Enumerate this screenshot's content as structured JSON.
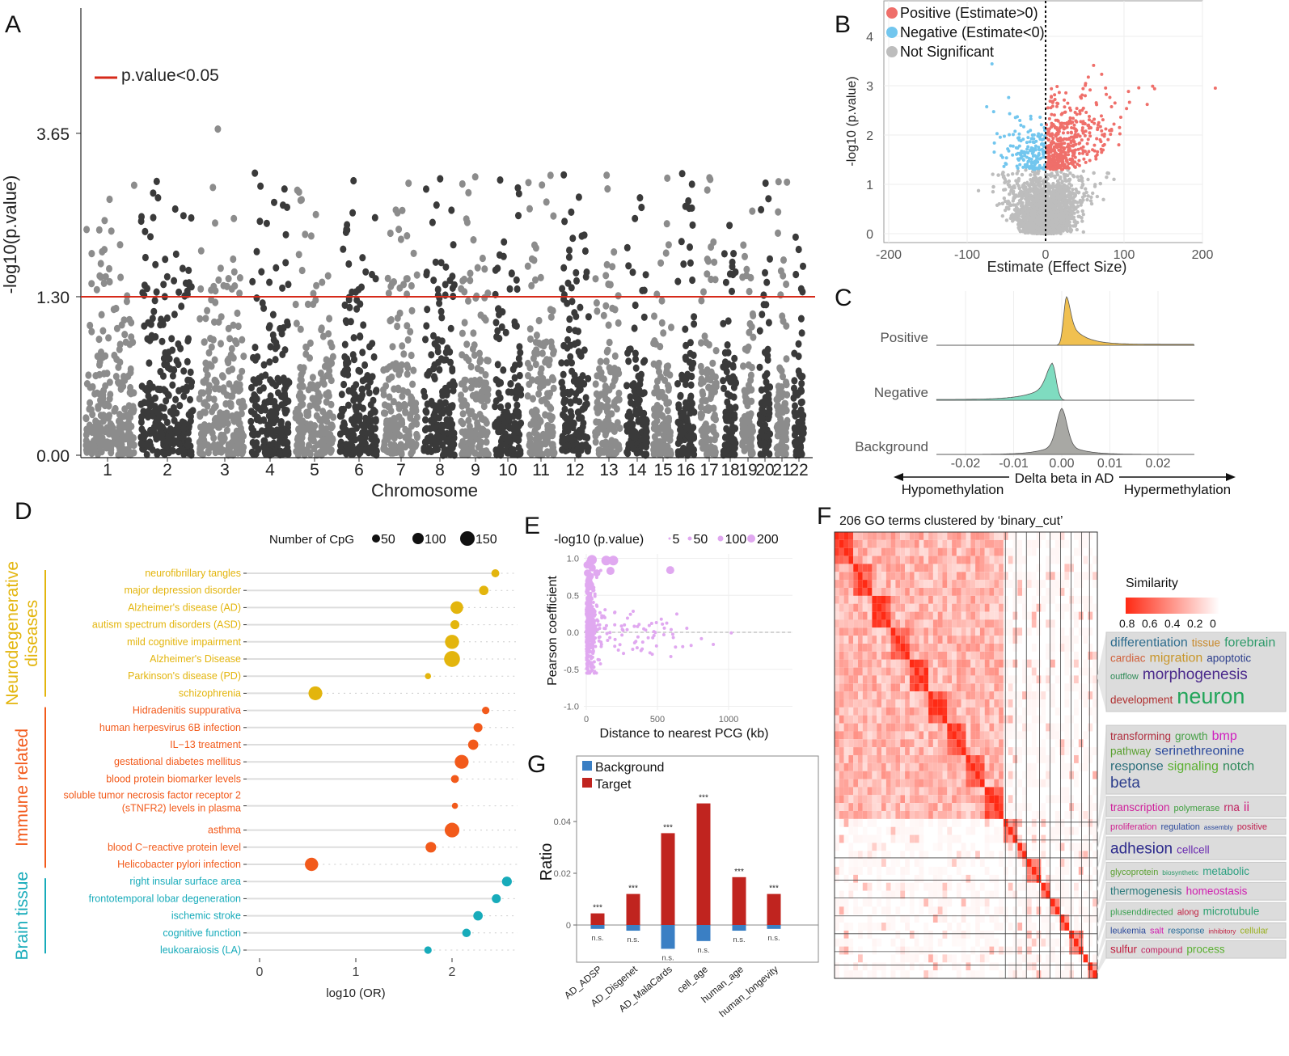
{
  "panel_labels": {
    "A": "A",
    "B": "B",
    "C": "C",
    "D": "D",
    "E": "E",
    "F": "F",
    "G": "G"
  },
  "colors": {
    "manhattan_light": "#8c8c8c",
    "manhattan_dark": "#3a3a3a",
    "threshold": "#d62a1a",
    "positive": "#ef6f6a",
    "negative": "#72c6ee",
    "not_significant": "#bdbdbd",
    "ridge_positive": "#f0c050",
    "ridge_negative": "#7fdcc0",
    "ridge_background": "#a8a8a4",
    "neuro": "#e3b50d",
    "immune": "#f25a1b",
    "brain": "#17abba",
    "E_points": "#e0a8f0",
    "bar_target": "#c0241f",
    "bar_background": "#3a7fc4",
    "heat_high": "#ff2a14"
  },
  "chart_data": [
    {
      "panel": "A",
      "type": "scatter",
      "xlabel": "Chromosome",
      "ylabel": "-log10(p.value)",
      "categories": [
        "1",
        "2",
        "3",
        "4",
        "5",
        "6",
        "7",
        "8",
        "9",
        "10",
        "11",
        "12",
        "13",
        "14",
        "15",
        "16",
        "17",
        "18",
        "19",
        "20",
        "21",
        "22"
      ],
      "y_ticks": [
        "0.00",
        "1.30",
        "3.65"
      ],
      "threshold": 1.3,
      "legend": "p.value<0.05",
      "ymax_observed": 5.2,
      "grid": false
    },
    {
      "panel": "B",
      "type": "scatter",
      "xlabel": "Estimate (Effect Size)",
      "ylabel": "-log10 (p.value)",
      "x_ticks": [
        "-200",
        "-100",
        "0",
        "100",
        "200"
      ],
      "y_ticks": [
        "0",
        "1",
        "2",
        "3",
        "4"
      ],
      "xlim": [
        -210,
        200
      ],
      "ylim": [
        -0.2,
        4.7
      ],
      "threshold": 1.3,
      "legend_position": "top-left",
      "series": [
        {
          "name": "Positive (Estimate>0)",
          "color_key": "positive"
        },
        {
          "name": "Negative (Estimate<0)",
          "color_key": "negative"
        },
        {
          "name": "Not Significant",
          "color_key": "not_significant"
        }
      ],
      "grid": true
    },
    {
      "panel": "C",
      "type": "area",
      "xlabel": "Delta beta in AD",
      "x_ticks": [
        "-0.02",
        "-0.01",
        "0.00",
        "0.01",
        "0.02"
      ],
      "xlim": [
        -0.028,
        0.028
      ],
      "left_annotation": "Hypomethylation",
      "right_annotation": "Hypermethylation",
      "series": [
        {
          "name": "Positive",
          "mode": 0.001,
          "color_key": "ridge_positive"
        },
        {
          "name": "Negative",
          "mode": -0.002,
          "color_key": "ridge_negative"
        },
        {
          "name": "Background",
          "mode": 0.0,
          "color_key": "ridge_background"
        }
      ]
    },
    {
      "panel": "D",
      "type": "scatter",
      "xlabel": "log10 (OR)",
      "x_ticks": [
        "0",
        "1",
        "2"
      ],
      "xlim": [
        -0.1,
        2.7
      ],
      "size_legend": {
        "title": "Number of CpG",
        "values": [
          "50",
          "100",
          "150"
        ]
      },
      "groups": [
        {
          "name": "Neurodegenerative diseases",
          "color_key": "neuro",
          "items": [
            {
              "label": "neurofibrillary tangles",
              "value": 2.45,
              "cpg": 30
            },
            {
              "label": "major depression disorder",
              "value": 2.33,
              "cpg": 45
            },
            {
              "label": "Alzheimer's disease (AD)",
              "value": 2.05,
              "cpg": 90
            },
            {
              "label": "autism spectrum disorders (ASD)",
              "value": 2.03,
              "cpg": 40
            },
            {
              "label": "mild cognitive impairment",
              "value": 2.0,
              "cpg": 115
            },
            {
              "label": "Alzheimer's Disease",
              "value": 2.0,
              "cpg": 150
            },
            {
              "label": "Parkinson's disease (PD)",
              "value": 1.75,
              "cpg": 15
            },
            {
              "label": "schizophrenia",
              "value": 0.58,
              "cpg": 110
            }
          ]
        },
        {
          "name": "Immune related",
          "color_key": "immune",
          "items": [
            {
              "label": "Hidradenitis suppurativa",
              "value": 2.35,
              "cpg": 25
            },
            {
              "label": "human herpesvirus 6B infection",
              "value": 2.27,
              "cpg": 40
            },
            {
              "label": "IL−13 treatment",
              "value": 2.22,
              "cpg": 55
            },
            {
              "label": "gestational diabetes mellitus",
              "value": 2.1,
              "cpg": 110
            },
            {
              "label": "blood protein biomarker levels",
              "value": 2.03,
              "cpg": 30
            },
            {
              "label": "soluble tumor necrosis factor receptor 2|(sTNFR2) levels in plasma",
              "value": 2.03,
              "cpg": 15
            },
            {
              "label": "asthma",
              "value": 2.0,
              "cpg": 125
            },
            {
              "label": "blood C−reactive protein level",
              "value": 1.78,
              "cpg": 60
            },
            {
              "label": "Helicobacter pylori infection",
              "value": 0.54,
              "cpg": 100
            }
          ]
        },
        {
          "name": "Brain tissue",
          "color_key": "brain",
          "items": [
            {
              "label": "right insular surface area",
              "value": 2.57,
              "cpg": 50
            },
            {
              "label": "frontotemporal lobar degeneration",
              "value": 2.46,
              "cpg": 40
            },
            {
              "label": "ischemic stroke",
              "value": 2.27,
              "cpg": 45
            },
            {
              "label": "cognitive function",
              "value": 2.15,
              "cpg": 35
            },
            {
              "label": "leukoaraiosis (LA)",
              "value": 1.75,
              "cpg": 25
            }
          ]
        }
      ]
    },
    {
      "panel": "E",
      "type": "scatter",
      "xlabel": "Distance to nearest PCG (kb)",
      "ylabel": "Pearson coefficient",
      "x_ticks": [
        "0",
        "500",
        "1000"
      ],
      "y_ticks": [
        "1.0",
        "0.5",
        "0.0",
        "-0.5",
        "-1.0"
      ],
      "xlim": [
        -30,
        1450
      ],
      "ylim": [
        -1.05,
        1.05
      ],
      "size_legend": {
        "title": "-log10 (p.value)",
        "values": [
          "5",
          "50",
          "100",
          "200"
        ]
      },
      "reference_line": 0.0,
      "grid": true
    },
    {
      "panel": "F",
      "type": "heatmap",
      "title": "206 GO terms clustered by ‘binary_cut’",
      "legend_title": "Similarity",
      "legend_ticks": [
        "0.8",
        "0.6",
        "0.4",
        "0.2",
        "0"
      ],
      "cluster_boundaries": [
        0.65,
        0.69,
        0.73,
        0.78,
        0.82,
        0.86,
        0.9,
        0.94,
        0.97,
        1.0
      ],
      "word_clouds": [
        [
          [
            "differentiation",
            "#2f6d8e",
            3
          ],
          [
            "tissue",
            "#c88a2c",
            2
          ],
          [
            "forebrain",
            "#2e9a6a",
            3
          ],
          [
            "cardiac",
            "#d0603a",
            2
          ],
          [
            "migration",
            "#c8962a",
            3
          ],
          [
            "apoptotic",
            "#2c3e8c",
            2
          ],
          [
            "outflow",
            "#2e8b57",
            1
          ],
          [
            "morphogenesis",
            "#4b2a8c",
            4
          ],
          [
            "development",
            "#b03030",
            2
          ],
          [
            "neuron",
            "#22a55a",
            6
          ]
        ],
        [
          [
            "transforming",
            "#b03040",
            2
          ],
          [
            "growth",
            "#46a046",
            2
          ],
          [
            "bmp",
            "#d020c0",
            3
          ],
          [
            "pathway",
            "#5aa030",
            2
          ],
          [
            "serinethreonine",
            "#2c4a9c",
            3
          ],
          [
            "response",
            "#2c6f7c",
            3
          ],
          [
            "signaling",
            "#5ab030",
            3
          ],
          [
            "notch",
            "#2e8a5a",
            3
          ],
          [
            "beta",
            "#2c3e8c",
            4
          ]
        ],
        [
          [
            "transcription",
            "#d0209c",
            2
          ],
          [
            "polymerase",
            "#40a040",
            1
          ],
          [
            "rna",
            "#c02060",
            2
          ],
          [
            "ii",
            "#d02080",
            3
          ]
        ],
        [
          [
            "proliferation",
            "#d02090",
            1
          ],
          [
            "regulation",
            "#2c4a9c",
            1
          ],
          [
            "assembly",
            "#2c4a9c",
            0
          ],
          [
            "positive",
            "#c02050",
            1
          ]
        ],
        [
          [
            "adhesion",
            "#2c2a8c",
            4
          ],
          [
            "cellcell",
            "#6a2ab0",
            2
          ]
        ],
        [
          [
            "glycoprotein",
            "#5aa030",
            1
          ],
          [
            "biosynthetic",
            "#2c9a6a",
            0
          ],
          [
            "metabolic",
            "#2ca080",
            2
          ]
        ],
        [
          [
            "thermogenesis",
            "#2c7a7c",
            2
          ],
          [
            "homeostasis",
            "#d020b0",
            2
          ]
        ],
        [
          [
            "plusenddirected",
            "#3aa050",
            1
          ],
          [
            "along",
            "#c02040",
            1
          ],
          [
            "microtubule",
            "#2ca070",
            2
          ]
        ],
        [
          [
            "leukemia",
            "#2c4a9c",
            1
          ],
          [
            "salt",
            "#d020b0",
            1
          ],
          [
            "response",
            "#2c6f9c",
            1
          ],
          [
            "inhibitory",
            "#c02040",
            0
          ],
          [
            "cellular",
            "#9ab020",
            1
          ]
        ],
        [
          [
            "sulfur",
            "#c02040",
            2
          ],
          [
            "compound",
            "#c02060",
            1
          ],
          [
            "process",
            "#5ab030",
            2
          ]
        ]
      ]
    },
    {
      "panel": "G",
      "type": "bar",
      "ylabel": "Ratio",
      "y_ticks": [
        "0.04",
        "0.02",
        "0"
      ],
      "ylim": [
        -0.012,
        0.051
      ],
      "categories": [
        "AD_ADSP",
        "AD_Disgenet",
        "AD_MalaCards",
        "cell_age",
        "human_age",
        "human_longevity"
      ],
      "series": [
        {
          "name": "Background",
          "values": [
            -0.0015,
            -0.0022,
            -0.0092,
            -0.0062,
            -0.0022,
            -0.0015
          ],
          "labels": [
            "n.s.",
            "n.s.",
            "n.s.",
            "n.s.",
            "n.s.",
            "n.s."
          ]
        },
        {
          "name": "Target",
          "values": [
            0.0045,
            0.012,
            0.0355,
            0.047,
            0.0185,
            0.012
          ],
          "labels": [
            "***",
            "***",
            "***",
            "***",
            "***",
            "***"
          ]
        }
      ],
      "legend_position": "top-left"
    }
  ]
}
